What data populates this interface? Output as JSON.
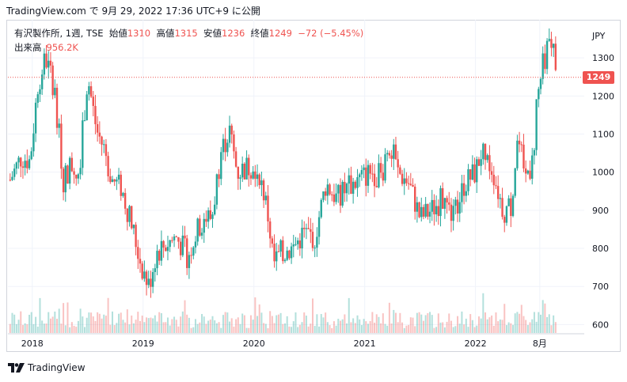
{
  "header": {
    "text": "TradingView.com で 9月 29, 2022 17:36 UTC+9 に公開"
  },
  "legend": {
    "symbol": "有沢製作所, 1週, TSE",
    "open_label": "始値",
    "open": "1310",
    "high_label": "高値",
    "high": "1315",
    "low_label": "安値",
    "low": "1236",
    "close_label": "終値",
    "close": "1249",
    "change": "−72 (−5.45%)",
    "volume_label": "出来高",
    "volume": "956.2K"
  },
  "currency": "JPY",
  "last_price_label": "1249",
  "brand": "TradingView",
  "colors": {
    "up": "#26a69a",
    "down": "#ef5350",
    "grid": "#f0f3fa"
  },
  "chart_data": {
    "type": "candlestick",
    "y_ticks": [
      "600",
      "700",
      "800",
      "900",
      "1000",
      "1100",
      "1200",
      "1300"
    ],
    "x_ticks": [
      "2018",
      "2019",
      "2020",
      "2021",
      "2022",
      "8月"
    ],
    "ylim": [
      580,
      1400
    ],
    "last_price": 1249,
    "price_path": [
      [
        2017.8,
        980
      ],
      [
        2017.9,
        1040
      ],
      [
        2017.98,
        1030
      ],
      [
        2018.05,
        1230
      ],
      [
        2018.12,
        1300
      ],
      [
        2018.2,
        1220
      ],
      [
        2018.28,
        980
      ],
      [
        2018.35,
        1020
      ],
      [
        2018.42,
        1000
      ],
      [
        2018.5,
        1250
      ],
      [
        2018.58,
        1110
      ],
      [
        2018.65,
        1060
      ],
      [
        2018.72,
        980
      ],
      [
        2018.8,
        960
      ],
      [
        2018.88,
        880
      ],
      [
        2018.98,
        760
      ],
      [
        2019.05,
        700
      ],
      [
        2019.12,
        790
      ],
      [
        2019.2,
        810
      ],
      [
        2019.3,
        830
      ],
      [
        2019.4,
        780
      ],
      [
        2019.48,
        840
      ],
      [
        2019.55,
        880
      ],
      [
        2019.62,
        880
      ],
      [
        2019.7,
        1050
      ],
      [
        2019.78,
        1110
      ],
      [
        2019.85,
        1000
      ],
      [
        2019.92,
        1010
      ],
      [
        2020.0,
        1020
      ],
      [
        2020.05,
        1000
      ],
      [
        2020.12,
        900
      ],
      [
        2020.18,
        760
      ],
      [
        2020.25,
        790
      ],
      [
        2020.35,
        800
      ],
      [
        2020.45,
        840
      ],
      [
        2020.55,
        830
      ],
      [
        2020.65,
        970
      ],
      [
        2020.75,
        930
      ],
      [
        2020.85,
        960
      ],
      [
        2020.95,
        980
      ],
      [
        2021.05,
        1000
      ],
      [
        2021.15,
        990
      ],
      [
        2021.22,
        1080
      ],
      [
        2021.3,
        1000
      ],
      [
        2021.4,
        970
      ],
      [
        2021.5,
        880
      ],
      [
        2021.6,
        900
      ],
      [
        2021.7,
        930
      ],
      [
        2021.8,
        880
      ],
      [
        2021.9,
        970
      ],
      [
        2022.0,
        1000
      ],
      [
        2022.05,
        1050
      ],
      [
        2022.15,
        1010
      ],
      [
        2022.25,
        900
      ],
      [
        2022.32,
        910
      ],
      [
        2022.38,
        1090
      ],
      [
        2022.45,
        990
      ],
      [
        2022.52,
        1030
      ],
      [
        2022.55,
        1180
      ],
      [
        2022.62,
        1300
      ],
      [
        2022.68,
        1340
      ],
      [
        2022.72,
        1310
      ],
      [
        2022.74,
        1249
      ]
    ]
  }
}
